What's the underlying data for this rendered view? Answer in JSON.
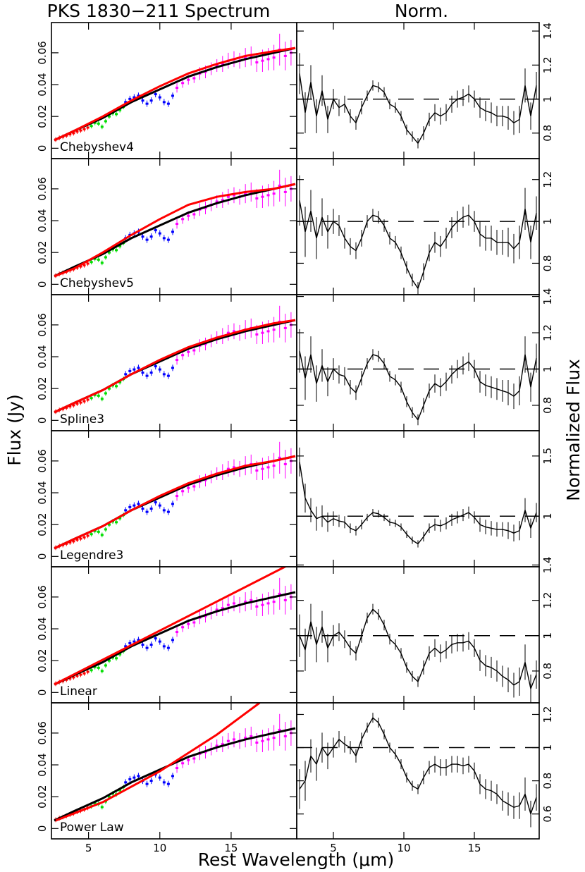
{
  "figure": {
    "title": "PKS 1830−211 Spectrum",
    "norm_title": "Norm.",
    "ylabel": "Flux (Jy)",
    "y2label": "Normalized Flux",
    "xlabel": "Rest Wavelength (μm)",
    "xlim": [
      2.4,
      19.6
    ],
    "xticks": [
      5,
      10,
      15
    ],
    "ylim": [
      -0.0065,
      0.079
    ],
    "yticks": [
      0,
      0.02,
      0.04,
      0.06
    ],
    "norm_ref": 1,
    "norm_x": [
      2.6,
      3.0,
      3.4,
      3.8,
      4.2,
      4.6,
      5.0,
      5.4,
      5.8,
      6.2,
      6.6,
      7.0,
      7.4,
      7.8,
      8.2,
      8.6,
      9.0,
      9.4,
      9.8,
      10.2,
      10.6,
      11.0,
      11.4,
      11.8,
      12.2,
      12.6,
      13.0,
      13.4,
      13.8,
      14.2,
      14.6,
      15.0,
      15.4,
      15.8,
      16.2,
      16.6,
      17.0,
      17.4,
      17.8,
      18.2,
      18.6,
      19.0,
      19.4
    ],
    "norm_err": [
      0.12,
      0.12,
      0.1,
      0.1,
      0.09,
      0.08,
      0.06,
      0.05,
      0.05,
      0.04,
      0.04,
      0.04,
      0.03,
      0.03,
      0.03,
      0.03,
      0.03,
      0.03,
      0.03,
      0.03,
      0.03,
      0.03,
      0.04,
      0.04,
      0.05,
      0.05,
      0.05,
      0.05,
      0.05,
      0.05,
      0.05,
      0.05,
      0.06,
      0.06,
      0.06,
      0.06,
      0.06,
      0.07,
      0.07,
      0.08,
      0.1,
      0.08,
      0.08
    ],
    "continuum": {
      "color": "#000000",
      "x": [
        2.6,
        4,
        6,
        8,
        10,
        12,
        14,
        16,
        18,
        19.5
      ],
      "y": [
        0.005,
        0.011,
        0.019,
        0.029,
        0.037,
        0.045,
        0.051,
        0.056,
        0.06,
        0.063
      ]
    }
  },
  "spectrum": {
    "segments": [
      {
        "color": "#ff0000",
        "x": [
          2.7,
          2.95,
          3.2,
          3.45,
          3.7,
          3.95,
          4.2,
          4.45,
          4.7,
          4.95
        ],
        "y": [
          0.0055,
          0.0065,
          0.0072,
          0.008,
          0.0088,
          0.0095,
          0.0105,
          0.0112,
          0.012,
          0.013
        ],
        "err": [
          0.0015,
          0.0015,
          0.0015,
          0.0015,
          0.0015,
          0.0015,
          0.0015,
          0.0015,
          0.0015,
          0.0015
        ]
      },
      {
        "color": "#00dd00",
        "x": [
          5.2,
          5.45,
          5.7,
          5.95,
          6.2,
          6.45,
          6.7,
          6.95,
          7.2,
          7.45
        ],
        "y": [
          0.014,
          0.016,
          0.0155,
          0.0135,
          0.017,
          0.02,
          0.022,
          0.0215,
          0.024,
          0.026
        ],
        "err": [
          0.0015,
          0.0015,
          0.0015,
          0.0015,
          0.0015,
          0.0015,
          0.0015,
          0.0015,
          0.0015,
          0.0015
        ]
      },
      {
        "color": "#0000ff",
        "x": [
          7.6,
          7.9,
          8.2,
          8.5,
          8.8,
          9.1,
          9.4,
          9.7,
          10.0,
          10.3,
          10.6,
          10.9
        ],
        "y": [
          0.029,
          0.031,
          0.032,
          0.033,
          0.03,
          0.028,
          0.03,
          0.034,
          0.032,
          0.029,
          0.028,
          0.033
        ],
        "err": [
          0.002,
          0.002,
          0.002,
          0.002,
          0.002,
          0.002,
          0.002,
          0.002,
          0.002,
          0.002,
          0.002,
          0.002
        ]
      },
      {
        "color": "#ff00ff",
        "x": [
          11.2,
          11.6,
          12.0,
          12.4,
          12.8,
          13.2,
          13.6,
          14.0,
          14.4,
          14.8,
          15.2,
          15.6,
          16.0,
          16.4,
          16.8,
          17.2,
          17.6,
          18.0,
          18.4,
          18.8,
          19.2
        ],
        "y": [
          0.038,
          0.041,
          0.043,
          0.044,
          0.047,
          0.048,
          0.05,
          0.052,
          0.053,
          0.055,
          0.056,
          0.055,
          0.057,
          0.058,
          0.054,
          0.055,
          0.056,
          0.057,
          0.062,
          0.058,
          0.06
        ],
        "err": [
          0.003,
          0.003,
          0.003,
          0.003,
          0.004,
          0.004,
          0.004,
          0.004,
          0.005,
          0.005,
          0.005,
          0.005,
          0.006,
          0.006,
          0.006,
          0.007,
          0.007,
          0.008,
          0.01,
          0.009,
          0.008
        ]
      }
    ]
  },
  "chart_data": [
    {
      "type": "spectrum-fit",
      "label": "Chebyshev4",
      "fit": {
        "color": "#ff0000",
        "x": [
          2.6,
          4,
          6,
          8,
          10,
          12,
          14,
          16,
          18,
          19.5
        ],
        "y": [
          0.005,
          0.011,
          0.02,
          0.03,
          0.039,
          0.047,
          0.053,
          0.058,
          0.061,
          0.063
        ]
      },
      "norm": {
        "ylim": [
          0.65,
          1.45
        ],
        "yticks": [
          0.8,
          1,
          1.2,
          1.4
        ],
        "values": [
          1.15,
          0.92,
          1.1,
          0.9,
          1.05,
          0.88,
          1.0,
          0.95,
          0.97,
          0.9,
          0.86,
          0.95,
          1.02,
          1.08,
          1.07,
          1.04,
          0.97,
          0.95,
          0.9,
          0.82,
          0.78,
          0.74,
          0.8,
          0.88,
          0.92,
          0.9,
          0.92,
          0.97,
          1.0,
          1.01,
          1.03,
          1.0,
          0.95,
          0.93,
          0.92,
          0.9,
          0.9,
          0.89,
          0.86,
          0.88,
          1.08,
          0.9,
          1.08
        ]
      }
    },
    {
      "type": "spectrum-fit",
      "label": "Chebyshev5",
      "fit": {
        "color": "#ff0000",
        "x": [
          2.6,
          4,
          6,
          8,
          10,
          12,
          14,
          16,
          18,
          19.5
        ],
        "y": [
          0.005,
          0.01,
          0.02,
          0.031,
          0.041,
          0.05,
          0.055,
          0.058,
          0.06,
          0.063
        ]
      },
      "norm": {
        "ylim": [
          0.65,
          1.3
        ],
        "yticks": [
          0.8,
          1,
          1.2
        ],
        "values": [
          1.1,
          0.95,
          1.05,
          0.92,
          1.02,
          0.95,
          1.0,
          0.98,
          0.92,
          0.88,
          0.86,
          0.92,
          1.0,
          1.03,
          1.02,
          0.98,
          0.92,
          0.9,
          0.85,
          0.78,
          0.72,
          0.68,
          0.76,
          0.85,
          0.9,
          0.88,
          0.92,
          0.97,
          1.0,
          1.02,
          1.03,
          1.0,
          0.94,
          0.92,
          0.92,
          0.9,
          0.9,
          0.9,
          0.87,
          0.9,
          1.06,
          0.9,
          1.04
        ]
      }
    },
    {
      "type": "spectrum-fit",
      "label": "Spline3",
      "fit": {
        "color": "#ff0000",
        "x": [
          2.6,
          4,
          6,
          8,
          10,
          12,
          14,
          16,
          18,
          19.5
        ],
        "y": [
          0.005,
          0.011,
          0.019,
          0.029,
          0.038,
          0.046,
          0.052,
          0.057,
          0.061,
          0.063
        ]
      },
      "norm": {
        "ylim": [
          0.66,
          1.41
        ],
        "yticks": [
          0.8,
          1,
          1.2,
          1.4
        ],
        "values": [
          1.1,
          0.95,
          1.08,
          0.92,
          1.02,
          0.93,
          1.0,
          0.97,
          0.96,
          0.9,
          0.87,
          0.95,
          1.03,
          1.08,
          1.07,
          1.03,
          0.96,
          0.94,
          0.9,
          0.82,
          0.76,
          0.72,
          0.8,
          0.88,
          0.92,
          0.9,
          0.93,
          0.97,
          1.0,
          1.02,
          1.04,
          1.0,
          0.93,
          0.91,
          0.9,
          0.89,
          0.88,
          0.87,
          0.85,
          0.88,
          1.08,
          0.9,
          1.06
        ]
      }
    },
    {
      "type": "spectrum-fit",
      "label": "Legendre3",
      "fit": {
        "color": "#ff0000",
        "x": [
          2.6,
          4,
          6,
          8,
          10,
          12,
          14,
          16,
          18,
          19.5
        ],
        "y": [
          0.005,
          0.011,
          0.019,
          0.029,
          0.038,
          0.046,
          0.052,
          0.057,
          0.06,
          0.063
        ]
      },
      "norm": {
        "ylim": [
          0.58,
          1.71
        ],
        "yticks": [
          1,
          1.5
        ],
        "values": [
          1.45,
          1.15,
          1.05,
          0.98,
          1.0,
          0.95,
          0.98,
          0.96,
          0.95,
          0.9,
          0.88,
          0.93,
          0.99,
          1.03,
          1.02,
          0.99,
          0.95,
          0.94,
          0.91,
          0.85,
          0.8,
          0.77,
          0.83,
          0.9,
          0.93,
          0.92,
          0.94,
          0.97,
          0.99,
          1.01,
          1.03,
          0.99,
          0.93,
          0.91,
          0.9,
          0.89,
          0.89,
          0.88,
          0.86,
          0.88,
          1.05,
          0.9,
          1.03
        ]
      }
    },
    {
      "type": "spectrum-fit",
      "label": "Linear",
      "fit": {
        "color": "#ff0000",
        "x": [
          2.6,
          19.0
        ],
        "y": [
          0.005,
          0.08
        ]
      },
      "norm": {
        "ylim": [
          0.62,
          1.39
        ],
        "yticks": [
          0.8,
          1,
          1.2,
          1.4
        ],
        "values": [
          1.0,
          0.92,
          1.08,
          0.95,
          1.05,
          0.93,
          1.0,
          1.02,
          0.98,
          0.93,
          0.9,
          1.0,
          1.1,
          1.15,
          1.12,
          1.06,
          0.98,
          0.95,
          0.9,
          0.82,
          0.77,
          0.74,
          0.82,
          0.9,
          0.93,
          0.9,
          0.92,
          0.95,
          0.96,
          0.96,
          0.97,
          0.93,
          0.86,
          0.83,
          0.82,
          0.8,
          0.77,
          0.75,
          0.72,
          0.74,
          0.85,
          0.7,
          0.78
        ]
      }
    },
    {
      "type": "spectrum-fit",
      "label": "Power Law",
      "fit": {
        "color": "#ff0000",
        "x": [
          2.7,
          6,
          10,
          14,
          17
        ],
        "y": [
          0.005,
          0.0166,
          0.036,
          0.059,
          0.079
        ]
      },
      "norm": {
        "ylim": [
          0.45,
          1.27
        ],
        "yticks": [
          0.6,
          0.8,
          1,
          1.2
        ],
        "values": [
          0.75,
          0.8,
          0.95,
          0.9,
          1.0,
          0.95,
          1.0,
          1.05,
          1.02,
          1.0,
          0.95,
          1.05,
          1.12,
          1.18,
          1.15,
          1.08,
          1.0,
          0.96,
          0.9,
          0.82,
          0.77,
          0.75,
          0.82,
          0.88,
          0.9,
          0.88,
          0.88,
          0.9,
          0.9,
          0.89,
          0.9,
          0.86,
          0.78,
          0.75,
          0.74,
          0.72,
          0.68,
          0.66,
          0.64,
          0.65,
          0.72,
          0.6,
          0.7
        ]
      }
    }
  ]
}
